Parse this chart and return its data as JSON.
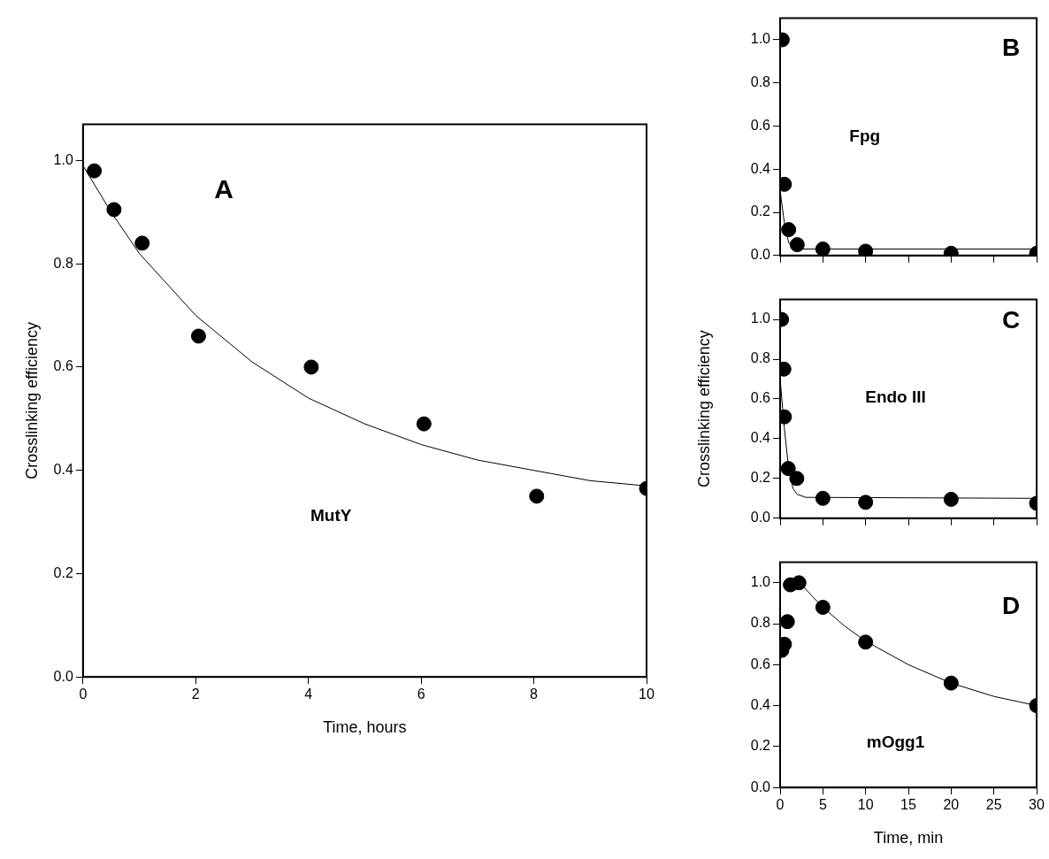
{
  "chart_data": [
    {
      "type": "scatter",
      "xlabel": "Time, hours",
      "ylabel": "Crosslinking efficiency",
      "annotations": [
        "A",
        "MutY"
      ],
      "xlim": [
        0,
        10
      ],
      "xticks": [
        0,
        2,
        4,
        6,
        8,
        10
      ],
      "ylim": [
        0,
        1.07
      ],
      "yticks": [
        {
          "value": 0,
          "label": "0.0"
        },
        {
          "value": 0.2,
          "label": "0.2"
        },
        {
          "value": 0.4,
          "label": "0.4"
        },
        {
          "value": 0.6,
          "label": "0.6"
        },
        {
          "value": 0.8,
          "label": "0.8"
        },
        {
          "value": 1,
          "label": "1.0"
        }
      ],
      "marker": "circle",
      "series": [
        {
          "color": "#000000",
          "x": [
            0.2,
            0.55,
            1.05,
            2.05,
            4.05,
            6.05,
            8.05,
            10
          ],
          "values": [
            0.98,
            0.905,
            0.84,
            0.66,
            0.6,
            0.49,
            0.35,
            0.365
          ]
        },
        {
          "type": "line",
          "color": "#000000",
          "marker": "none",
          "x": [
            0,
            0.5,
            1,
            1.5,
            2,
            3,
            4,
            5,
            6,
            7,
            8,
            9,
            10
          ],
          "values": [
            0.99,
            0.9,
            0.82,
            0.76,
            0.7,
            0.61,
            0.54,
            0.49,
            0.45,
            0.42,
            0.4,
            0.38,
            0.37
          ]
        }
      ]
    },
    {
      "type": "scatter",
      "annotations": [
        "B",
        "Fpg"
      ],
      "xlim": [
        0,
        30
      ],
      "xticks": [
        0,
        5,
        10,
        15,
        20,
        25,
        30
      ],
      "ylim": [
        0,
        1.1
      ],
      "yticks": [
        {
          "value": 0,
          "label": "0.0"
        },
        {
          "value": 0.2,
          "label": "0.2"
        },
        {
          "value": 0.4,
          "label": "0.4"
        },
        {
          "value": 0.6,
          "label": "0.6"
        },
        {
          "value": 0.8,
          "label": "0.8"
        },
        {
          "value": 1,
          "label": "1.0"
        }
      ],
      "tick_labels": "y",
      "marker": "circle",
      "series": [
        {
          "color": "#000000",
          "x": [
            0.25,
            0.5,
            1,
            2,
            5,
            10,
            20,
            30
          ],
          "values": [
            1.0,
            0.33,
            0.12,
            0.05,
            0.03,
            0.02,
            0.01,
            0.01
          ]
        },
        {
          "type": "line",
          "color": "#000000",
          "marker": "none",
          "x": [
            0,
            0.5,
            1,
            1.5,
            2,
            30
          ],
          "values": [
            0.3,
            0.15,
            0.06,
            0.035,
            0.03,
            0.03
          ]
        }
      ]
    },
    {
      "type": "scatter",
      "ylabel": "Crosslinking efficiency",
      "annotations": [
        "C",
        "Endo III"
      ],
      "xlim": [
        0,
        30
      ],
      "xticks": [
        0,
        5,
        10,
        15,
        20,
        25,
        30
      ],
      "ylim": [
        0,
        1.1
      ],
      "yticks": [
        {
          "value": 0,
          "label": "0.0"
        },
        {
          "value": 0.2,
          "label": "0.2"
        },
        {
          "value": 0.4,
          "label": "0.4"
        },
        {
          "value": 0.6,
          "label": "0.6"
        },
        {
          "value": 0.8,
          "label": "0.8"
        },
        {
          "value": 1,
          "label": "1.0"
        }
      ],
      "tick_labels": "y",
      "marker": "circle",
      "series": [
        {
          "color": "#000000",
          "x": [
            0.17,
            0.44,
            0.5,
            0.95,
            1.95,
            5,
            10,
            20,
            30
          ],
          "values": [
            1.0,
            0.75,
            0.51,
            0.25,
            0.2,
            0.1,
            0.08,
            0.095,
            0.075
          ]
        },
        {
          "type": "line",
          "color": "#000000",
          "marker": "none",
          "x": [
            0,
            0.5,
            1,
            1.5,
            2,
            3,
            30
          ],
          "values": [
            0.7,
            0.45,
            0.25,
            0.15,
            0.12,
            0.105,
            0.1
          ]
        }
      ]
    },
    {
      "type": "scatter",
      "xlabel": "Time, min",
      "annotations": [
        "D",
        "mOgg1"
      ],
      "xlim": [
        0,
        30
      ],
      "xticks": [
        0,
        5,
        10,
        15,
        20,
        25,
        30
      ],
      "ylim": [
        0,
        1.1
      ],
      "yticks": [
        {
          "value": 0,
          "label": "0.0"
        },
        {
          "value": 0.2,
          "label": "0.2"
        },
        {
          "value": 0.4,
          "label": "0.4"
        },
        {
          "value": 0.6,
          "label": "0.6"
        },
        {
          "value": 0.8,
          "label": "0.8"
        },
        {
          "value": 1,
          "label": "1.0"
        }
      ],
      "marker": "circle",
      "series": [
        {
          "color": "#000000",
          "x": [
            0.2,
            0.5,
            0.85,
            1.2,
            2.2,
            5,
            10,
            20,
            30
          ],
          "values": [
            0.67,
            0.7,
            0.81,
            0.99,
            1.0,
            0.88,
            0.71,
            0.51,
            0.4
          ]
        },
        {
          "type": "line",
          "color": "#000000",
          "marker": "none",
          "x": [
            2.5,
            5,
            7.5,
            10,
            15,
            20,
            25,
            30
          ],
          "values": [
            0.99,
            0.88,
            0.79,
            0.715,
            0.6,
            0.51,
            0.445,
            0.4
          ]
        }
      ]
    }
  ]
}
